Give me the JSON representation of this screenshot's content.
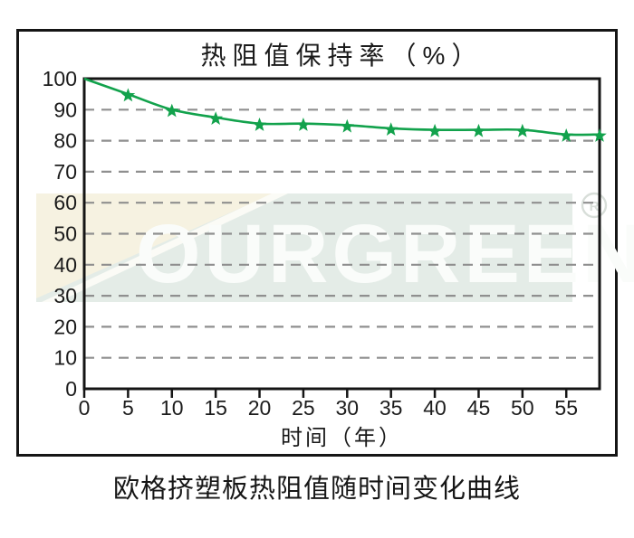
{
  "page": {
    "caption": "欧格挤塑板热阻值随时间变化曲线"
  },
  "watermark": {
    "text": "OURGREEN",
    "registered_symbol": "R",
    "band_color": "#e4ece7",
    "logo_cream_color": "#f6f2e1",
    "stripe_color": "#fbfbf6",
    "text_color": "#fafcfa",
    "symbol_color": "#d8ded9"
  },
  "chart_data": {
    "type": "line",
    "title": "热阻值保持率（%）",
    "xlabel": "时间（年）",
    "ylabel": "",
    "x_ticks": [
      0,
      5,
      10,
      15,
      20,
      25,
      30,
      35,
      40,
      45,
      50,
      55
    ],
    "y_ticks": [
      0,
      10,
      20,
      30,
      40,
      50,
      60,
      70,
      80,
      90,
      100
    ],
    "xlim": [
      0,
      58.8
    ],
    "ylim": [
      0,
      100
    ],
    "grid": "horizontal-dashed",
    "grid_color": "#8f8f8f",
    "axis_color": "#151515",
    "series": [
      {
        "name": "热阻值保持率",
        "marker": "star",
        "color": "#12a24c",
        "x": [
          0,
          5,
          10,
          15,
          20,
          25,
          30,
          35,
          40,
          45,
          50,
          55,
          58.8
        ],
        "y": [
          100,
          95,
          90,
          87.5,
          85.5,
          85.5,
          85,
          84,
          83.5,
          83.5,
          83.5,
          82,
          82
        ]
      }
    ]
  }
}
